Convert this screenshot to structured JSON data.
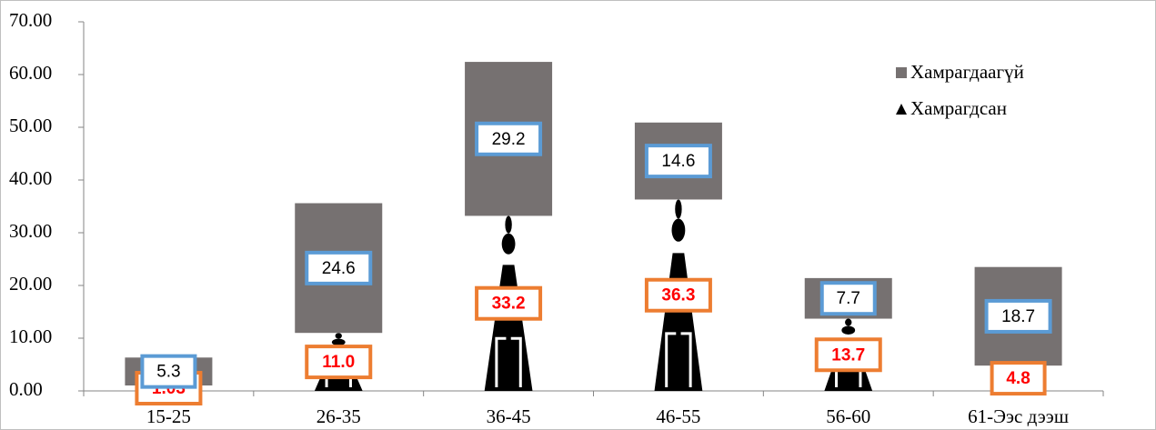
{
  "chart_data": {
    "type": "stacked-bar",
    "categories": [
      "15-25",
      "26-35",
      "36-45",
      "46-55",
      "56-60",
      "61-Ээс дээш"
    ],
    "series": [
      {
        "name": "Хамрагдсан",
        "color": "#000000",
        "values": [
          1.03,
          11.0,
          33.2,
          36.3,
          13.7,
          4.8
        ],
        "value_labels": [
          "1.03",
          "11.0",
          "33.2",
          "36.3",
          "13.7",
          "4.8"
        ]
      },
      {
        "name": "Хамрагдаагүй",
        "color": "#767171",
        "values": [
          5.3,
          24.6,
          29.2,
          14.6,
          7.7,
          18.7
        ],
        "value_labels": [
          "5.3",
          "24.6",
          "29.2",
          "14.6",
          "7.7",
          "18.7"
        ]
      }
    ],
    "ylim": [
      0,
      70
    ],
    "yticks": [
      {
        "value": 0,
        "label": "0.00"
      },
      {
        "value": 10,
        "label": "10.00"
      },
      {
        "value": 20,
        "label": "20.00"
      },
      {
        "value": 30,
        "label": "30.00"
      },
      {
        "value": 40,
        "label": "40.00"
      },
      {
        "value": 50,
        "label": "50.00"
      },
      {
        "value": 60,
        "label": "60.00"
      },
      {
        "value": 70,
        "label": "70.00"
      }
    ],
    "legend": "top-right"
  }
}
